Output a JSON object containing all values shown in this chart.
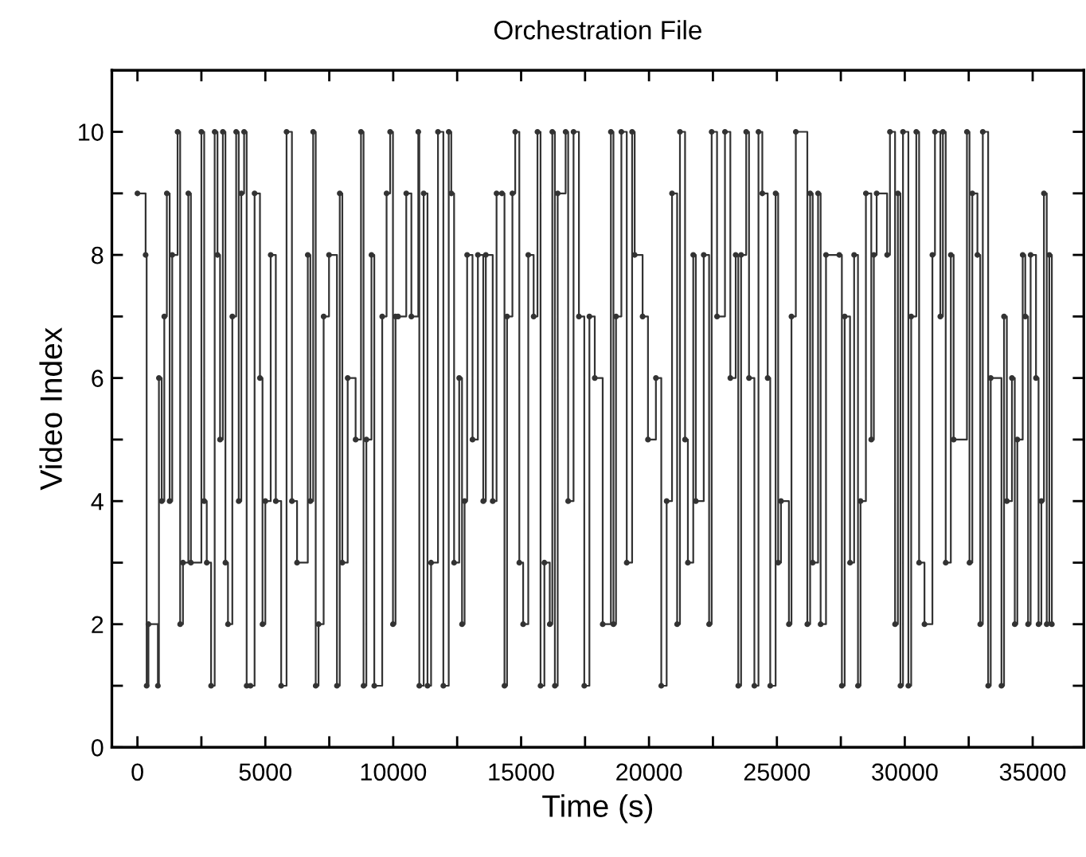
{
  "chart_data": {
    "type": "step",
    "title": "Orchestration File",
    "xlabel": "Time (s)",
    "ylabel": "Video Index",
    "xlim": [
      -1000,
      37000
    ],
    "ylim": [
      0,
      11
    ],
    "xticks": [
      0,
      {
        "value": 2500,
        "label": null
      },
      5000,
      {
        "value": 7500,
        "label": null
      },
      10000,
      {
        "value": 12500,
        "label": null
      },
      15000,
      {
        "value": 17500,
        "label": null
      },
      20000,
      {
        "value": 22500,
        "label": null
      },
      25000,
      {
        "value": 27500,
        "label": null
      },
      30000,
      {
        "value": 32500,
        "label": null
      },
      35000
    ],
    "yticks": [
      0,
      {
        "value": 1,
        "label": null
      },
      2,
      {
        "value": 3,
        "label": null
      },
      4,
      {
        "value": 5,
        "label": null
      },
      6,
      {
        "value": 7,
        "label": null
      },
      8,
      {
        "value": 9,
        "label": null
      },
      10
    ],
    "grid": false,
    "marker": "circle",
    "line_style": "solid",
    "series": [
      {
        "color": "#333333",
        "x": [
          0,
          320,
          360,
          430,
          800,
          840,
          950,
          1050,
          1150,
          1260,
          1360,
          1570,
          1670,
          1780,
          1990,
          2090,
          2500,
          2610,
          2710,
          2880,
          3020,
          3130,
          3230,
          3340,
          3440,
          3540,
          3710,
          3860,
          3960,
          4060,
          4170,
          4270,
          4420,
          4580,
          4790,
          4890,
          5000,
          5210,
          5410,
          5620,
          5830,
          6040,
          6240,
          6660,
          6760,
          6870,
          6970,
          7080,
          7280,
          7490,
          7800,
          7910,
          8010,
          8220,
          8530,
          8740,
          8840,
          8950,
          9150,
          9260,
          9570,
          9740,
          9880,
          9990,
          10090,
          10190,
          10510,
          10710,
          10980,
          11020,
          11190,
          11340,
          11480,
          11750,
          11960,
          12170,
          12270,
          12380,
          12580,
          12690,
          12790,
          12890,
          13100,
          13310,
          13520,
          13620,
          13890,
          14040,
          14250,
          14350,
          14450,
          14660,
          14770,
          14930,
          15080,
          15280,
          15490,
          15640,
          15760,
          15910,
          16120,
          16220,
          16320,
          16430,
          16740,
          16840,
          17050,
          17260,
          17470,
          17670,
          17880,
          18190,
          18510,
          18610,
          18710,
          18920,
          19130,
          19340,
          19440,
          19750,
          19960,
          20270,
          20480,
          20690,
          20900,
          21100,
          21210,
          21410,
          21520,
          21730,
          21830,
          22140,
          22350,
          22450,
          22660,
          22970,
          23180,
          23390,
          23490,
          23600,
          23800,
          23910,
          24120,
          24280,
          24430,
          24640,
          24740,
          24950,
          25050,
          25160,
          25470,
          25570,
          25740,
          26190,
          26300,
          26400,
          26610,
          26710,
          26920,
          27440,
          27540,
          27650,
          27860,
          28020,
          28170,
          28270,
          28480,
          28690,
          28790,
          28900,
          29310,
          29420,
          29620,
          29730,
          29830,
          29930,
          30140,
          30250,
          30450,
          30560,
          30770,
          31080,
          31180,
          31390,
          31490,
          31600,
          31800,
          31910,
          32430,
          32530,
          32640,
          32840,
          32950,
          33050,
          33260,
          33360,
          33780,
          33880,
          33990,
          34190,
          34300,
          34400,
          34610,
          34710,
          34820,
          34920,
          35130,
          35230,
          35340,
          35440,
          35550,
          35650,
          35750
        ],
        "values": [
          9,
          8,
          1,
          2,
          1,
          6,
          4,
          7,
          9,
          4,
          8,
          10,
          2,
          3,
          9,
          3,
          10,
          4,
          3,
          1,
          10,
          8,
          5,
          10,
          3,
          2,
          7,
          10,
          4,
          9,
          10,
          1,
          1,
          9,
          6,
          2,
          4,
          8,
          4,
          1,
          10,
          4,
          3,
          8,
          4,
          10,
          1,
          2,
          7,
          8,
          1,
          9,
          3,
          6,
          5,
          10,
          1,
          5,
          8,
          1,
          7,
          9,
          10,
          2,
          7,
          7,
          9,
          7,
          10,
          1,
          9,
          1,
          3,
          10,
          1,
          10,
          9,
          3,
          6,
          2,
          4,
          8,
          5,
          8,
          4,
          8,
          4,
          9,
          9,
          1,
          7,
          9,
          10,
          3,
          2,
          8,
          7,
          10,
          1,
          3,
          2,
          10,
          1,
          9,
          10,
          4,
          10,
          7,
          1,
          7,
          6,
          2,
          10,
          2,
          7,
          10,
          3,
          10,
          8,
          7,
          5,
          6,
          1,
          4,
          9,
          2,
          10,
          5,
          3,
          8,
          4,
          8,
          2,
          10,
          7,
          10,
          6,
          8,
          1,
          8,
          10,
          6,
          1,
          10,
          9,
          6,
          1,
          9,
          3,
          4,
          2,
          7,
          10,
          2,
          9,
          3,
          9,
          2,
          8,
          8,
          1,
          7,
          3,
          8,
          1,
          4,
          9,
          5,
          8,
          9,
          8,
          10,
          2,
          9,
          1,
          10,
          1,
          7,
          10,
          3,
          2,
          8,
          10,
          7,
          10,
          3,
          8,
          5,
          10,
          3,
          9,
          8,
          2,
          10,
          1,
          6,
          1,
          7,
          4,
          6,
          2,
          5,
          8,
          7,
          2,
          8,
          6,
          2,
          4,
          9,
          2,
          8,
          2
        ]
      }
    ]
  }
}
